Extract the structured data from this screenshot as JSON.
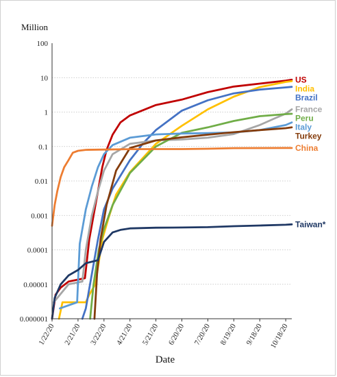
{
  "chart_data": {
    "type": "line",
    "unit_label": "Million",
    "xlabel": "Date",
    "ylabel": "",
    "y_scale": "log",
    "ylim": [
      1e-06,
      100
    ],
    "y_ticks": [
      "100",
      "10",
      "1",
      "0.1",
      "0.01",
      "0.001",
      "0.0001",
      "0.00001",
      "0.000001"
    ],
    "x_range": [
      "2020-01-22",
      "2020-10-25"
    ],
    "x_ticks": [
      {
        "date": "2020-01-22",
        "label": "1/22/20"
      },
      {
        "date": "2020-02-21",
        "label": "2/21/20"
      },
      {
        "date": "2020-03-22",
        "label": "3/22/20"
      },
      {
        "date": "2020-04-21",
        "label": "4/21/20"
      },
      {
        "date": "2020-05-21",
        "label": "5/21/20"
      },
      {
        "date": "2020-06-20",
        "label": "6/20/20"
      },
      {
        "date": "2020-07-20",
        "label": "7/20/20"
      },
      {
        "date": "2020-08-19",
        "label": "8/19/20"
      },
      {
        "date": "2020-09-18",
        "label": "9/18/20"
      },
      {
        "date": "2020-10-18",
        "label": "10/18/20"
      }
    ],
    "grid": "horizontal dotted",
    "series": [
      {
        "name": "US",
        "color": "#c00000",
        "points": [
          [
            "2020-01-22",
            1e-06
          ],
          [
            "2020-01-26",
            5e-06
          ],
          [
            "2020-02-01",
            8e-06
          ],
          [
            "2020-02-10",
            1.2e-05
          ],
          [
            "2020-02-29",
            1.5e-05
          ],
          [
            "2020-03-05",
            0.0002
          ],
          [
            "2020-03-10",
            0.001
          ],
          [
            "2020-03-15",
            0.005
          ],
          [
            "2020-03-20",
            0.025
          ],
          [
            "2020-03-25",
            0.08
          ],
          [
            "2020-04-01",
            0.22
          ],
          [
            "2020-04-10",
            0.5
          ],
          [
            "2020-04-21",
            0.8
          ],
          [
            "2020-05-21",
            1.6
          ],
          [
            "2020-06-20",
            2.3
          ],
          [
            "2020-07-20",
            3.8
          ],
          [
            "2020-08-19",
            5.5
          ],
          [
            "2020-09-18",
            6.7
          ],
          [
            "2020-10-18",
            8.2
          ],
          [
            "2020-10-25",
            8.7
          ]
        ]
      },
      {
        "name": "India",
        "color": "#ffc000",
        "points": [
          [
            "2020-01-30",
            1e-06
          ],
          [
            "2020-02-03",
            3e-06
          ],
          [
            "2020-03-01",
            3e-06
          ],
          [
            "2020-03-05",
            5e-06
          ],
          [
            "2020-03-12",
            1e-05
          ],
          [
            "2020-03-20",
            0.0002
          ],
          [
            "2020-03-27",
            0.0008
          ],
          [
            "2020-04-05",
            0.004
          ],
          [
            "2020-04-21",
            0.018
          ],
          [
            "2020-05-21",
            0.12
          ],
          [
            "2020-06-20",
            0.4
          ],
          [
            "2020-07-20",
            1.2
          ],
          [
            "2020-08-19",
            2.8
          ],
          [
            "2020-09-18",
            5.3
          ],
          [
            "2020-10-18",
            7.5
          ],
          [
            "2020-10-25",
            7.9
          ]
        ]
      },
      {
        "name": "Brazil",
        "color": "#4472c4",
        "points": [
          [
            "2020-02-26",
            1e-06
          ],
          [
            "2020-03-01",
            2e-06
          ],
          [
            "2020-03-08",
            2e-05
          ],
          [
            "2020-03-15",
            0.0002
          ],
          [
            "2020-03-22",
            0.0015
          ],
          [
            "2020-04-01",
            0.006
          ],
          [
            "2020-04-21",
            0.04
          ],
          [
            "2020-05-07",
            0.13
          ],
          [
            "2020-05-21",
            0.3
          ],
          [
            "2020-06-20",
            1.1
          ],
          [
            "2020-07-20",
            2.2
          ],
          [
            "2020-08-19",
            3.5
          ],
          [
            "2020-09-18",
            4.5
          ],
          [
            "2020-10-18",
            5.2
          ],
          [
            "2020-10-25",
            5.4
          ]
        ]
      },
      {
        "name": "France",
        "color": "#a6a6a6",
        "points": [
          [
            "2020-01-24",
            3e-06
          ],
          [
            "2020-02-10",
            1e-05
          ],
          [
            "2020-02-26",
            1.2e-05
          ],
          [
            "2020-03-01",
            0.0001
          ],
          [
            "2020-03-08",
            0.001
          ],
          [
            "2020-03-15",
            0.005
          ],
          [
            "2020-03-22",
            0.02
          ],
          [
            "2020-04-01",
            0.06
          ],
          [
            "2020-04-21",
            0.12
          ],
          [
            "2020-05-21",
            0.15
          ],
          [
            "2020-06-20",
            0.16
          ],
          [
            "2020-07-20",
            0.18
          ],
          [
            "2020-08-19",
            0.23
          ],
          [
            "2020-09-18",
            0.42
          ],
          [
            "2020-10-05",
            0.65
          ],
          [
            "2020-10-18",
            0.9
          ],
          [
            "2020-10-25",
            1.2
          ]
        ]
      },
      {
        "name": "Peru",
        "color": "#70ad47",
        "points": [
          [
            "2020-03-06",
            1e-06
          ],
          [
            "2020-03-10",
            1e-05
          ],
          [
            "2020-03-16",
            0.0001
          ],
          [
            "2020-03-22",
            0.0004
          ],
          [
            "2020-04-01",
            0.002
          ],
          [
            "2020-04-21",
            0.017
          ],
          [
            "2020-05-21",
            0.1
          ],
          [
            "2020-06-20",
            0.25
          ],
          [
            "2020-07-20",
            0.36
          ],
          [
            "2020-08-19",
            0.55
          ],
          [
            "2020-09-18",
            0.76
          ],
          [
            "2020-10-18",
            0.87
          ],
          [
            "2020-10-25",
            0.89
          ]
        ]
      },
      {
        "name": "Italy",
        "color": "#5b9bd5",
        "points": [
          [
            "2020-01-31",
            2e-06
          ],
          [
            "2020-02-20",
            3e-06
          ],
          [
            "2020-02-23",
            0.00015
          ],
          [
            "2020-03-01",
            0.0015
          ],
          [
            "2020-03-08",
            0.007
          ],
          [
            "2020-03-15",
            0.025
          ],
          [
            "2020-03-22",
            0.06
          ],
          [
            "2020-04-01",
            0.11
          ],
          [
            "2020-04-21",
            0.18
          ],
          [
            "2020-05-21",
            0.225
          ],
          [
            "2020-06-20",
            0.238
          ],
          [
            "2020-07-20",
            0.245
          ],
          [
            "2020-08-19",
            0.257
          ],
          [
            "2020-09-18",
            0.3
          ],
          [
            "2020-10-18",
            0.42
          ],
          [
            "2020-10-25",
            0.5
          ]
        ]
      },
      {
        "name": "Turkey",
        "color": "#843c0c",
        "points": [
          [
            "2020-03-11",
            1e-06
          ],
          [
            "2020-03-14",
            2e-05
          ],
          [
            "2020-03-18",
            0.0002
          ],
          [
            "2020-03-25",
            0.002
          ],
          [
            "2020-04-05",
            0.02
          ],
          [
            "2020-04-21",
            0.09
          ],
          [
            "2020-05-21",
            0.15
          ],
          [
            "2020-06-20",
            0.185
          ],
          [
            "2020-07-20",
            0.22
          ],
          [
            "2020-08-19",
            0.26
          ],
          [
            "2020-09-18",
            0.3
          ],
          [
            "2020-10-18",
            0.34
          ],
          [
            "2020-10-25",
            0.36
          ]
        ]
      },
      {
        "name": "China",
        "color": "#ed7d31",
        "points": [
          [
            "2020-01-22",
            0.0005
          ],
          [
            "2020-01-25",
            0.002
          ],
          [
            "2020-01-28",
            0.005
          ],
          [
            "2020-02-01",
            0.013
          ],
          [
            "2020-02-05",
            0.025
          ],
          [
            "2020-02-10",
            0.04
          ],
          [
            "2020-02-15",
            0.066
          ],
          [
            "2020-02-21",
            0.075
          ],
          [
            "2020-03-01",
            0.08
          ],
          [
            "2020-03-22",
            0.0815
          ],
          [
            "2020-04-21",
            0.0838
          ],
          [
            "2020-05-21",
            0.0841
          ],
          [
            "2020-06-20",
            0.0844
          ],
          [
            "2020-07-20",
            0.086
          ],
          [
            "2020-08-19",
            0.0898
          ],
          [
            "2020-09-18",
            0.0902
          ],
          [
            "2020-10-18",
            0.0906
          ],
          [
            "2020-10-25",
            0.0908
          ]
        ]
      },
      {
        "name": "Taiwan*",
        "color": "#1f3864",
        "points": [
          [
            "2020-01-22",
            1e-06
          ],
          [
            "2020-01-25",
            4e-06
          ],
          [
            "2020-02-01",
            1e-05
          ],
          [
            "2020-02-10",
            1.8e-05
          ],
          [
            "2020-02-21",
            2.6e-05
          ],
          [
            "2020-03-01",
            4.1e-05
          ],
          [
            "2020-03-15",
            5e-05
          ],
          [
            "2020-03-22",
            0.00017
          ],
          [
            "2020-04-01",
            0.00032
          ],
          [
            "2020-04-10",
            0.00038
          ],
          [
            "2020-04-21",
            0.00042
          ],
          [
            "2020-05-21",
            0.00044
          ],
          [
            "2020-06-20",
            0.000446
          ],
          [
            "2020-07-20",
            0.000455
          ],
          [
            "2020-08-19",
            0.000487
          ],
          [
            "2020-09-18",
            0.000509
          ],
          [
            "2020-10-18",
            0.000535
          ],
          [
            "2020-10-25",
            0.00055
          ]
        ]
      }
    ]
  }
}
